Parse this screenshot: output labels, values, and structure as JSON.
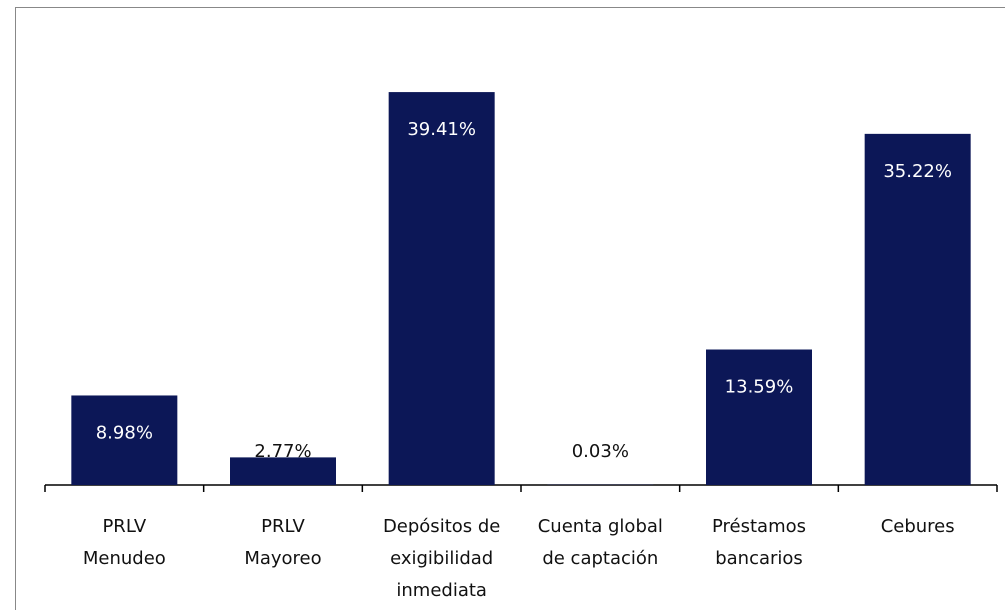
{
  "chart_data": {
    "type": "bar",
    "categories": [
      "PRLV\nMenudeo",
      "PRLV\nMayoreo",
      "Depósitos de\nexigibilidad\ninmediata",
      "Cuenta global\nde captación",
      "Préstamos\nbancarios",
      "Cebures"
    ],
    "values": [
      8.98,
      2.77,
      39.41,
      0.03,
      13.59,
      35.22
    ],
    "value_labels": [
      "8.98%",
      "2.77%",
      "39.41%",
      "0.03%",
      "13.59%",
      "35.22%"
    ],
    "color": "#0c1757"
  }
}
